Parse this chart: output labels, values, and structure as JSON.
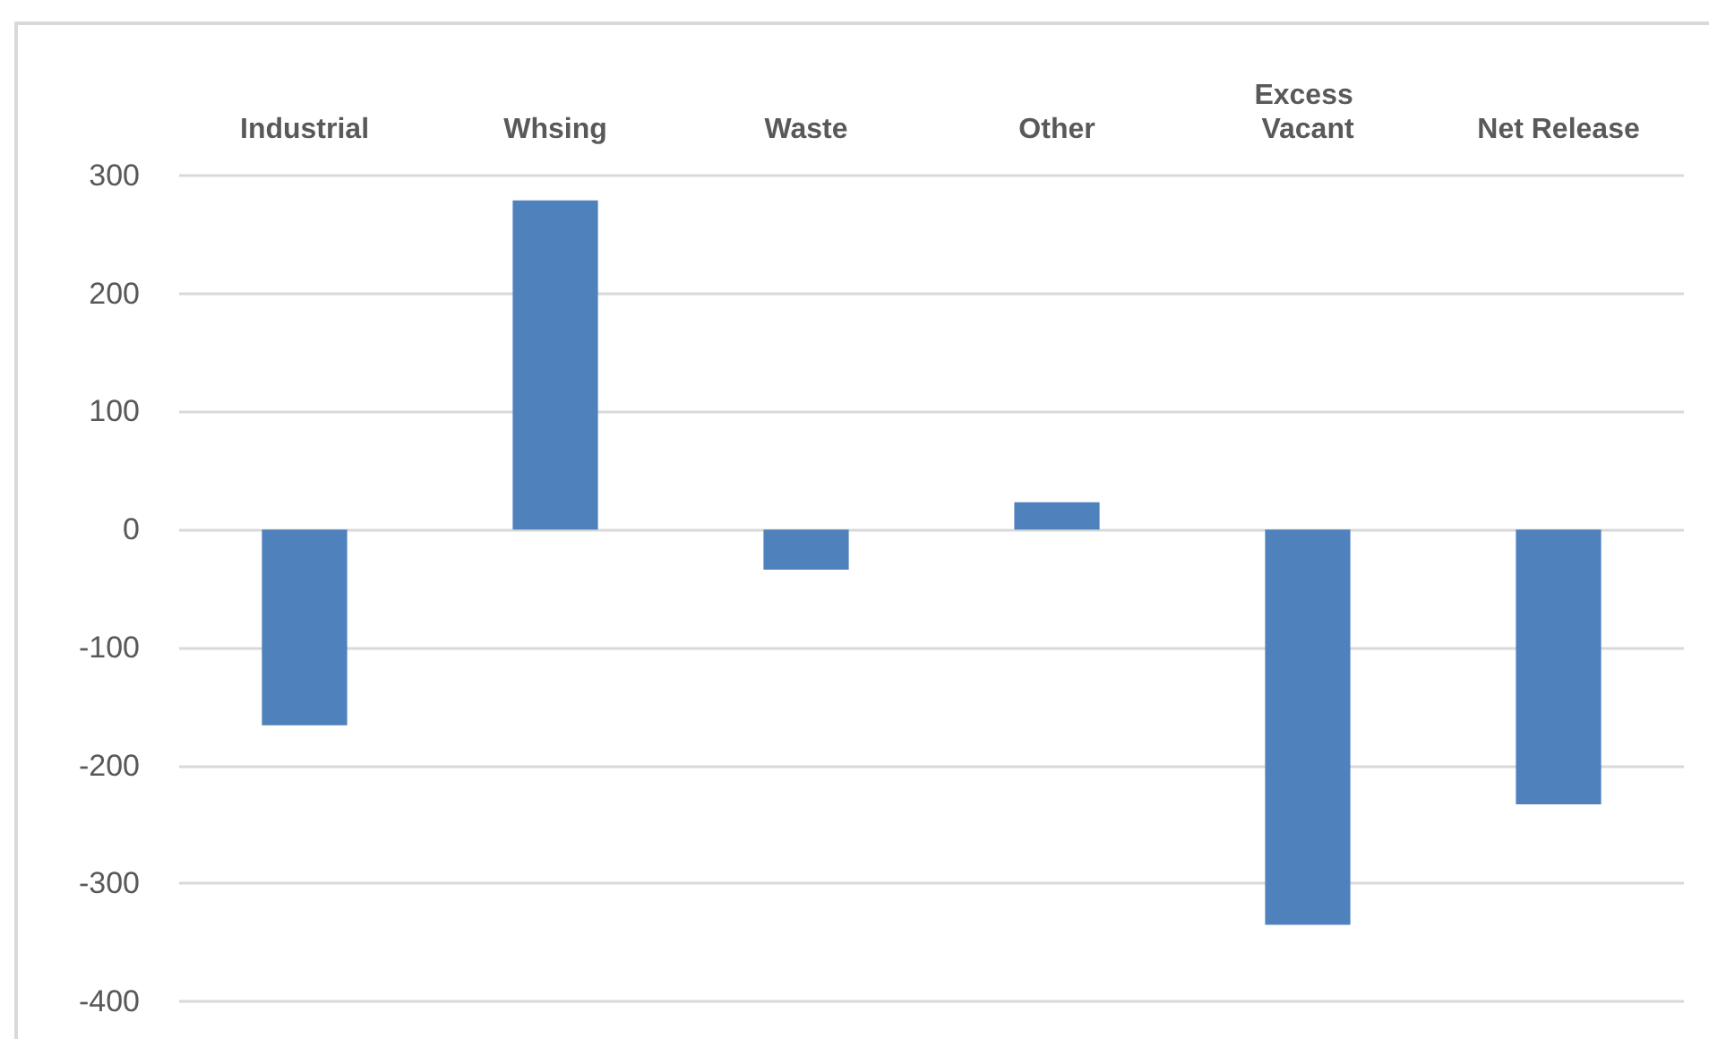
{
  "chart_data": {
    "type": "bar",
    "categories": [
      "Industrial",
      "Whsing",
      "Waste",
      "Other",
      "Excess Vacant",
      "Net Release"
    ],
    "values": [
      -166,
      279,
      -34,
      23,
      -335,
      -233
    ],
    "color": "#4f81bd",
    "ylim": [
      -400,
      300
    ],
    "yticks": [
      -400,
      -300,
      -200,
      -100,
      0,
      100,
      200,
      300
    ],
    "grid": "y"
  }
}
